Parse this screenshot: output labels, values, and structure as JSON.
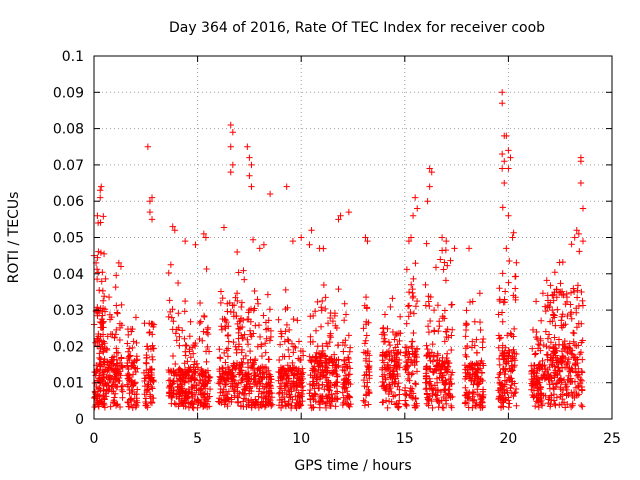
{
  "chart_data": {
    "type": "scatter",
    "title": "Day 364 of 2016, Rate Of TEC Index for receiver coob",
    "xlabel": "GPS time / hours",
    "ylabel": "ROTI / TECUs",
    "xlim": [
      0,
      25
    ],
    "ylim": [
      0,
      0.1
    ],
    "xticks": [
      0,
      5,
      10,
      15,
      20,
      25
    ],
    "yticks": [
      0,
      0.01,
      0.02,
      0.03,
      0.04,
      0.05,
      0.06,
      0.07,
      0.08,
      0.09,
      0.1
    ],
    "xtick_labels": [
      "0",
      "5",
      "10",
      "15",
      "20",
      "25"
    ],
    "ytick_labels": [
      "0",
      "0.01",
      "0.02",
      "0.03",
      "0.04",
      "0.05",
      "0.06",
      "0.07",
      "0.08",
      "0.09",
      "0.1"
    ],
    "grid": true,
    "marker": "+",
    "series_color": "#ff0000",
    "series": [
      {
        "name": "ROTI",
        "clusters": [
          {
            "start": 0.0,
            "end": 0.8,
            "typ": 0.009,
            "max": 0.045
          },
          {
            "start": 0.1,
            "end": 0.5,
            "typ": 0.02,
            "max": 0.064
          },
          {
            "start": 0.8,
            "end": 1.4,
            "typ": 0.01,
            "max": 0.043
          },
          {
            "start": 1.6,
            "end": 2.1,
            "typ": 0.01,
            "max": 0.036
          },
          {
            "start": 2.4,
            "end": 2.9,
            "typ": 0.008,
            "max": 0.039
          },
          {
            "start": 3.6,
            "end": 4.4,
            "typ": 0.008,
            "max": 0.05
          },
          {
            "start": 4.4,
            "end": 5.0,
            "typ": 0.008,
            "max": 0.03
          },
          {
            "start": 5.0,
            "end": 5.6,
            "typ": 0.008,
            "max": 0.05
          },
          {
            "start": 6.0,
            "end": 6.7,
            "typ": 0.008,
            "max": 0.054
          },
          {
            "start": 6.7,
            "end": 7.4,
            "typ": 0.009,
            "max": 0.05
          },
          {
            "start": 7.4,
            "end": 8.0,
            "typ": 0.009,
            "max": 0.054
          },
          {
            "start": 8.0,
            "end": 8.6,
            "typ": 0.008,
            "max": 0.045
          },
          {
            "start": 8.9,
            "end": 9.5,
            "typ": 0.008,
            "max": 0.04
          },
          {
            "start": 9.5,
            "end": 10.1,
            "typ": 0.008,
            "max": 0.03
          },
          {
            "start": 10.4,
            "end": 11.2,
            "typ": 0.011,
            "max": 0.05
          },
          {
            "start": 11.2,
            "end": 11.8,
            "typ": 0.01,
            "max": 0.042
          },
          {
            "start": 12.0,
            "end": 12.4,
            "typ": 0.009,
            "max": 0.035
          },
          {
            "start": 13.0,
            "end": 13.3,
            "typ": 0.011,
            "max": 0.05
          },
          {
            "start": 13.9,
            "end": 14.8,
            "typ": 0.011,
            "max": 0.035
          },
          {
            "start": 15.0,
            "end": 15.6,
            "typ": 0.012,
            "max": 0.06
          },
          {
            "start": 16.0,
            "end": 16.6,
            "typ": 0.011,
            "max": 0.05
          },
          {
            "start": 16.6,
            "end": 17.3,
            "typ": 0.01,
            "max": 0.047
          },
          {
            "start": 17.9,
            "end": 18.3,
            "typ": 0.009,
            "max": 0.039
          },
          {
            "start": 18.3,
            "end": 18.8,
            "typ": 0.009,
            "max": 0.035
          },
          {
            "start": 19.5,
            "end": 20.4,
            "typ": 0.012,
            "max": 0.065
          },
          {
            "start": 21.1,
            "end": 21.8,
            "typ": 0.009,
            "max": 0.035
          },
          {
            "start": 21.8,
            "end": 23.6,
            "typ": 0.012,
            "max": 0.052
          }
        ],
        "points": [
          [
            2.6,
            0.075
          ],
          [
            2.7,
            0.06
          ],
          [
            2.7,
            0.057
          ],
          [
            2.8,
            0.061
          ],
          [
            2.8,
            0.055
          ],
          [
            0.3,
            0.063
          ],
          [
            0.35,
            0.064
          ],
          [
            0.2,
            0.054
          ],
          [
            0.3,
            0.061
          ],
          [
            6.6,
            0.081
          ],
          [
            6.7,
            0.079
          ],
          [
            6.6,
            0.075
          ],
          [
            6.7,
            0.07
          ],
          [
            6.6,
            0.068
          ],
          [
            7.4,
            0.075
          ],
          [
            7.5,
            0.072
          ],
          [
            7.6,
            0.07
          ],
          [
            7.5,
            0.067
          ],
          [
            7.6,
            0.064
          ],
          [
            8.5,
            0.062
          ],
          [
            9.3,
            0.064
          ],
          [
            12.3,
            0.057
          ],
          [
            11.8,
            0.055
          ],
          [
            11.9,
            0.056
          ],
          [
            15.5,
            0.061
          ],
          [
            15.6,
            0.058
          ],
          [
            15.4,
            0.056
          ],
          [
            16.2,
            0.069
          ],
          [
            16.3,
            0.068
          ],
          [
            16.2,
            0.064
          ],
          [
            16.1,
            0.06
          ],
          [
            19.7,
            0.09
          ],
          [
            19.7,
            0.087
          ],
          [
            19.8,
            0.078
          ],
          [
            19.9,
            0.078
          ],
          [
            19.7,
            0.073
          ],
          [
            19.8,
            0.071
          ],
          [
            20.0,
            0.074
          ],
          [
            20.1,
            0.072
          ],
          [
            20.0,
            0.069
          ],
          [
            19.7,
            0.069
          ],
          [
            19.8,
            0.065
          ],
          [
            20.0,
            0.056
          ],
          [
            20.2,
            0.05
          ],
          [
            19.9,
            0.047
          ],
          [
            18.1,
            0.047
          ],
          [
            23.5,
            0.072
          ],
          [
            23.5,
            0.071
          ],
          [
            23.5,
            0.065
          ],
          [
            23.6,
            0.058
          ],
          [
            23.3,
            0.052
          ],
          [
            23.4,
            0.051
          ],
          [
            23.6,
            0.049
          ],
          [
            23.2,
            0.05
          ],
          [
            10.0,
            0.05
          ],
          [
            9.6,
            0.049
          ],
          [
            10.5,
            0.052
          ],
          [
            10.4,
            0.048
          ],
          [
            4.4,
            0.049
          ],
          [
            4.9,
            0.048
          ],
          [
            5.3,
            0.051
          ],
          [
            5.4,
            0.05
          ],
          [
            3.8,
            0.053
          ],
          [
            3.9,
            0.052
          ],
          [
            8.0,
            0.047
          ],
          [
            8.2,
            0.048
          ],
          [
            0.0,
            0.045
          ],
          [
            0.1,
            0.043
          ],
          [
            1.2,
            0.043
          ],
          [
            1.3,
            0.042
          ],
          [
            13.1,
            0.05
          ],
          [
            13.2,
            0.049
          ],
          [
            15.2,
            0.049
          ],
          [
            15.3,
            0.05
          ],
          [
            16.8,
            0.05
          ],
          [
            17.0,
            0.049
          ],
          [
            17.4,
            0.047
          ]
        ]
      }
    ]
  }
}
